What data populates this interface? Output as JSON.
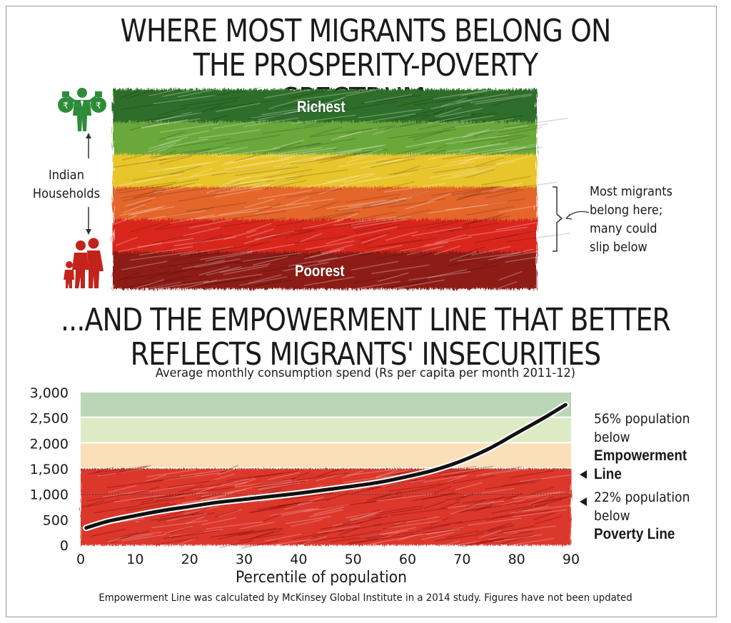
{
  "titles": {
    "top": "WHERE MOST MIGRANTS BELONG ON THE PROSPERITY-POVERTY SPECTRUM...",
    "bottom": "...AND THE EMPOWERMENT LINE THAT BETTER REFLECTS MIGRANTS' INSECURITIES"
  },
  "spectrum": {
    "top_label": "Richest",
    "bottom_label": "Poorest",
    "axis_label": "Indian Households",
    "note": "Most migrants belong here; many could slip below",
    "band_colors": [
      "#2f6e2b",
      "#6aa83a",
      "#e8c52a",
      "#e4662a",
      "#d9281e",
      "#8e1c16"
    ]
  },
  "colors": {
    "rich_icon": "#2e8b3a",
    "poor_icon": "#c4231c",
    "curve": "#111111",
    "zone_top": "#b9d7b6",
    "zone_2": "#dcebc4",
    "zone_3": "#fbdfb8",
    "zone_4": "#f7c0a6",
    "zone_red": "#d9281e"
  },
  "icons": [
    "money-bag-icon",
    "rich-person-icon",
    "arrow-up-icon",
    "arrow-down-icon",
    "family-icon"
  ],
  "chart_data": {
    "type": "line",
    "title": "...AND THE EMPOWERMENT LINE THAT BETTER REFLECTS MIGRANTS' INSECURITIES",
    "subtitle": "Average monthly consumption spend (Rs per capita per month 2011-12)",
    "xlabel": "Percentile of population",
    "ylabel": "",
    "xlim": [
      0,
      90
    ],
    "ylim": [
      0,
      3000
    ],
    "x_ticks": [
      "0",
      "10",
      "20",
      "30",
      "40",
      "50",
      "60",
      "70",
      "80",
      "90"
    ],
    "y_ticks": [
      "0",
      "500",
      "1,000",
      "1,500",
      "2,000",
      "2,500",
      "3,000"
    ],
    "series": [
      {
        "x": [
          1,
          5,
          10,
          15,
          20,
          25,
          30,
          35,
          40,
          45,
          50,
          55,
          60,
          65,
          70,
          75,
          80,
          85,
          89
        ],
        "values": [
          340,
          470,
          580,
          680,
          760,
          840,
          900,
          960,
          1020,
          1090,
          1160,
          1240,
          1350,
          1480,
          1660,
          1900,
          2200,
          2500,
          2760
        ]
      }
    ],
    "reference_lines": [
      {
        "name": "Empowerment Line",
        "value": 1500
      },
      {
        "name": "Poverty Line",
        "value": 1000
      }
    ],
    "annotations": [
      {
        "text": "56% population below",
        "bold": "Empowerment Line"
      },
      {
        "text": "22% population below",
        "bold": "Poverty Line"
      }
    ],
    "footnote": "Empowerment Line was calculated by McKinsey Global Institute in a 2014 study. Figures have not been updated",
    "grid": false
  }
}
